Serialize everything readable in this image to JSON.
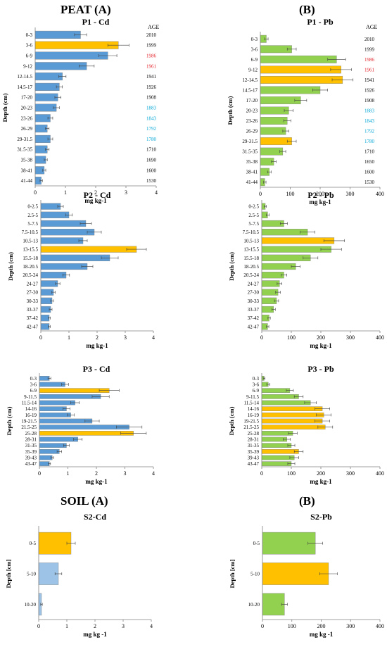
{
  "colors": {
    "blue": "#5b9bd5",
    "orange": "#ffc000",
    "green": "#92d050",
    "light_blue": "#9dc3e6",
    "age_red": "#e3242b",
    "age_cyan": "#00a6d6",
    "age_black": "#000000",
    "axis": "#808080"
  },
  "headings": {
    "peat_a": "PEAT (A)",
    "peat_b": "(B)",
    "soil_a": "SOIL (A)",
    "soil_b": "(B)"
  },
  "chart_data": [
    {
      "id": "p1cd",
      "type": "bar",
      "orientation": "horizontal",
      "title": "P1 - Cd",
      "ylabel": "Depth (cm)",
      "xlabel": "mg kg-1",
      "xlim": [
        0,
        4
      ],
      "xticks": [
        0,
        1,
        2,
        3,
        4
      ],
      "age_header": "AGE",
      "categories": [
        "0-3",
        "3-6",
        "6-9",
        "9-12",
        "12-14.5",
        "14.5-17",
        "17-20",
        "20-23",
        "23-26",
        "26-29",
        "29-31.5",
        "31.5-35",
        "35-38",
        "38-41",
        "41-44"
      ],
      "values": [
        1.5,
        2.75,
        2.4,
        1.7,
        0.9,
        0.8,
        0.75,
        0.7,
        0.5,
        0.4,
        0.5,
        0.4,
        0.35,
        0.3,
        0.2
      ],
      "errors": [
        0.2,
        0.35,
        0.3,
        0.25,
        0.12,
        0.1,
        0.1,
        0.1,
        0.08,
        0.06,
        0.08,
        0.06,
        0.05,
        0.05,
        0.04
      ],
      "highlight": [
        1
      ],
      "ages": [
        "2010",
        "1999",
        "1986",
        "1961",
        "1941",
        "1926",
        "1908",
        "1883",
        "1843",
        "1792",
        "1780",
        "1710",
        "1690",
        "1600",
        "1530"
      ],
      "age_colors": [
        "age_black",
        "age_black",
        "age_red",
        "age_red",
        "age_black",
        "age_black",
        "age_black",
        "age_cyan",
        "age_cyan",
        "age_cyan",
        "age_cyan",
        "age_black",
        "age_black",
        "age_black",
        "age_black"
      ]
    },
    {
      "id": "p1pb",
      "type": "bar",
      "orientation": "horizontal",
      "title": "P1 - Pb",
      "ylabel": "Depth (cm)",
      "xlabel": "mg kg-1",
      "xlim": [
        0,
        400
      ],
      "xticks": [
        0,
        100,
        200,
        300,
        400
      ],
      "age_header": "AGE",
      "categories": [
        "0-3",
        "3-6",
        "6-9",
        "9-12",
        "12-14.5",
        "14.5-17",
        "17-20",
        "20-23",
        "23-26",
        "26-29",
        "29-31.5",
        "31.5-35",
        "35-38",
        "38-41",
        "41-44"
      ],
      "values": [
        20,
        105,
        255,
        270,
        275,
        200,
        135,
        95,
        90,
        85,
        105,
        75,
        45,
        30,
        15
      ],
      "errors": [
        6,
        15,
        30,
        35,
        35,
        25,
        20,
        15,
        12,
        10,
        15,
        10,
        8,
        6,
        4
      ],
      "highlight": [
        3,
        4,
        10
      ],
      "ages": [
        "2010",
        "1999",
        "1986",
        "1961",
        "1941",
        "1926",
        "1908",
        "1883",
        "1843",
        "1792",
        "1780",
        "1710",
        "1650",
        "1600",
        "1530"
      ],
      "age_colors": [
        "age_black",
        "age_black",
        "age_red",
        "age_red",
        "age_black",
        "age_black",
        "age_black",
        "age_cyan",
        "age_cyan",
        "age_cyan",
        "age_cyan",
        "age_black",
        "age_black",
        "age_black",
        "age_black"
      ]
    },
    {
      "id": "p2cd",
      "type": "bar",
      "orientation": "horizontal",
      "title": "P2 - Cd",
      "ylabel": "Depth (cm)",
      "xlabel": "mg kg-1",
      "xlim": [
        0,
        4
      ],
      "xticks": [
        0,
        1,
        2,
        3,
        4
      ],
      "categories": [
        "0-2.5",
        "2.5-5",
        "5-7.5",
        "7.5-10.5",
        "10.5-13",
        "13-15.5",
        "15.5-18",
        "18-20.5",
        "20.5-24",
        "24-27",
        "27-30",
        "30-33",
        "33-37",
        "37-42",
        "42-47"
      ],
      "values": [
        0.7,
        1.0,
        1.6,
        1.9,
        1.5,
        3.4,
        2.45,
        1.65,
        0.9,
        0.6,
        0.45,
        0.4,
        0.35,
        0.3,
        0.3
      ],
      "errors": [
        0.1,
        0.12,
        0.2,
        0.25,
        0.15,
        0.35,
        0.3,
        0.2,
        0.12,
        0.08,
        0.06,
        0.05,
        0.05,
        0.04,
        0.04
      ],
      "highlight": [
        5
      ]
    },
    {
      "id": "p2pb",
      "type": "bar",
      "orientation": "horizontal",
      "title": "P2 - Pb",
      "ylabel": "Depth (cm)",
      "xlabel": "mg kg-1",
      "xlim": [
        0,
        400
      ],
      "xticks": [
        0,
        100,
        200,
        300,
        400
      ],
      "categories": [
        "0-2.5",
        "2.5-5",
        "5-7.5",
        "7.5-10.5",
        "10.5-13",
        "13-15.5",
        "15.5-18",
        "18-20.5",
        "20.5-24",
        "24-27",
        "27-30",
        "30-33",
        "33-37",
        "37-42",
        "42-47"
      ],
      "values": [
        12,
        20,
        75,
        155,
        245,
        235,
        165,
        115,
        75,
        60,
        55,
        50,
        40,
        25,
        20
      ],
      "errors": [
        4,
        5,
        12,
        25,
        35,
        35,
        25,
        15,
        10,
        8,
        8,
        7,
        6,
        4,
        4
      ],
      "highlight": [
        4
      ]
    },
    {
      "id": "p3cd",
      "type": "bar",
      "orientation": "horizontal",
      "title": "P3 - Cd",
      "ylabel": "Depth (cm)",
      "xlabel": "mg kg-1",
      "xlim": [
        0,
        4
      ],
      "xticks": [
        0,
        1,
        2,
        3,
        4
      ],
      "categories": [
        "0-3",
        "3-6",
        "6-9",
        "9-11.5",
        "11.5-14",
        "14-16",
        "16-19",
        "19-21.5",
        "21.5-25",
        "25-28",
        "28-31",
        "31-35",
        "35-39",
        "39-43",
        "43-47"
      ],
      "values": [
        0.35,
        0.9,
        2.45,
        2.15,
        1.25,
        0.95,
        1.1,
        1.85,
        3.15,
        3.3,
        1.35,
        0.95,
        0.7,
        0.45,
        0.35
      ],
      "errors": [
        0.05,
        0.12,
        0.35,
        0.3,
        0.15,
        0.12,
        0.12,
        0.25,
        0.45,
        0.45,
        0.15,
        0.1,
        0.08,
        0.05,
        0.04
      ],
      "highlight": [
        2,
        9
      ]
    },
    {
      "id": "p3pb",
      "type": "bar",
      "orientation": "horizontal",
      "title": "P3 - Pb",
      "ylabel": "Depth (cm)",
      "xlabel": "mg kg-1",
      "xlim": [
        0,
        400
      ],
      "xticks": [
        0,
        100,
        200,
        300,
        400
      ],
      "categories": [
        "0-3",
        "3-6",
        "6-9",
        "9-11.5",
        "11.5-14",
        "14-16",
        "16-19",
        "19-21.5",
        "21.5-25",
        "25-28",
        "28-31",
        "31-35",
        "35-39",
        "39-43",
        "43-47"
      ],
      "values": [
        8,
        22,
        95,
        125,
        165,
        205,
        210,
        205,
        215,
        105,
        85,
        100,
        125,
        110,
        100
      ],
      "errors": [
        3,
        5,
        12,
        15,
        20,
        25,
        25,
        25,
        25,
        15,
        12,
        12,
        15,
        15,
        12
      ],
      "highlight": [
        5,
        6,
        7,
        8,
        12
      ]
    },
    {
      "id": "s2cd",
      "type": "bar",
      "orientation": "horizontal",
      "title": "S2-Cd",
      "ylabel": "Depth [cm]",
      "xlabel": "mg kg -1",
      "xlim": [
        0,
        4
      ],
      "xticks": [
        0,
        1,
        2,
        3,
        4
      ],
      "categories": [
        "0-5",
        "5-10",
        "10-20"
      ],
      "values": [
        1.15,
        0.7,
        0.1
      ],
      "errors": [
        0.15,
        0.12,
        0.03
      ],
      "highlight": [
        0
      ],
      "muted": [
        1,
        2
      ]
    },
    {
      "id": "s2pb",
      "type": "bar",
      "orientation": "horizontal",
      "title": "S2-Pb",
      "ylabel": "Depth [cm]",
      "xlabel": "mg kg -1",
      "xlim": [
        0,
        400
      ],
      "xticks": [
        0,
        100,
        200,
        300,
        400
      ],
      "categories": [
        "0-5",
        "5-10",
        "10-20"
      ],
      "values": [
        180,
        225,
        75
      ],
      "errors": [
        25,
        30,
        10
      ],
      "highlight": [
        1
      ]
    }
  ]
}
